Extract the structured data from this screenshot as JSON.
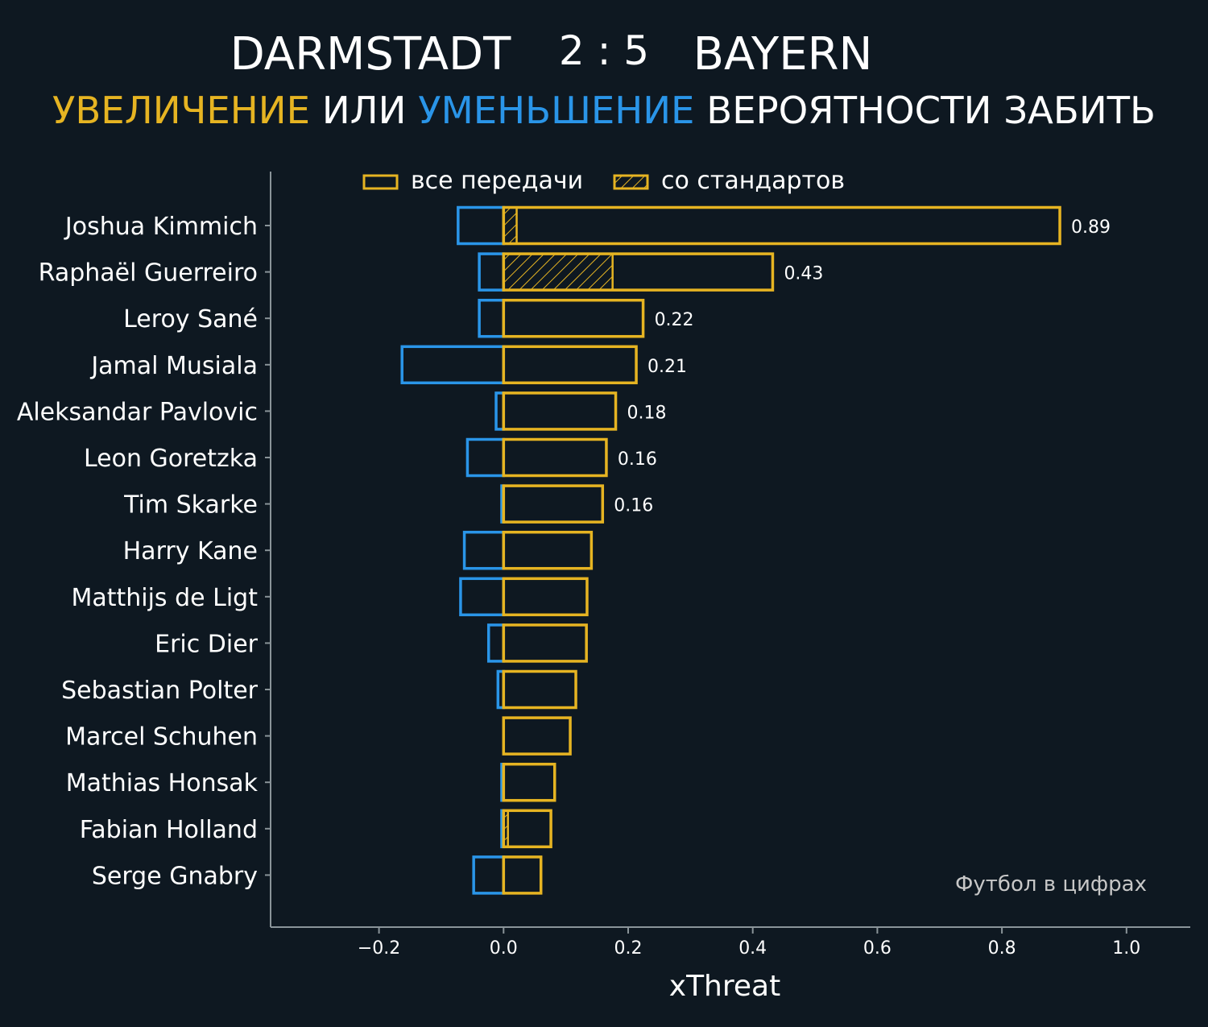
{
  "header": {
    "home_team": "DARMSTADT",
    "score": "2 : 5",
    "away_team": "BAYERN",
    "subtitle_increase": "УВЕЛИЧЕНИЕ",
    "subtitle_or": " ИЛИ ",
    "subtitle_decrease": "УМЕНЬШЕНИЕ",
    "subtitle_rest": " ВЕРОЯТНОСТИ ЗАБИТЬ"
  },
  "colors": {
    "background": "#0e1821",
    "increase": "#e6b422",
    "decrease": "#2a95e8",
    "axis": "#8a9499",
    "text": "#ffffff",
    "watermark": "#c7c7c7"
  },
  "legend": {
    "all_passes": "все передачи",
    "set_pieces": "со стандартов"
  },
  "watermark": "Футбол в цифрах",
  "chart_data": {
    "type": "bar",
    "orientation": "horizontal",
    "xlabel": "xThreat",
    "xlim": [
      -0.37,
      1.1
    ],
    "xticks": [
      -0.2,
      0.0,
      0.2,
      0.4,
      0.6,
      0.8,
      1.0
    ],
    "xtick_labels": [
      "−0.2",
      "0.0",
      "0.2",
      "0.4",
      "0.6",
      "0.8",
      "1.0"
    ],
    "players": [
      {
        "name": "Joshua Kimmich",
        "positive": 0.893,
        "negative": -0.073,
        "set_piece": 0.021,
        "label": "0.89"
      },
      {
        "name": "Raphaël Guerreiro",
        "positive": 0.432,
        "negative": -0.039,
        "set_piece": 0.175,
        "label": "0.43"
      },
      {
        "name": "Leroy Sané",
        "positive": 0.224,
        "negative": -0.039,
        "set_piece": 0,
        "label": "0.22"
      },
      {
        "name": "Jamal Musiala",
        "positive": 0.213,
        "negative": -0.163,
        "set_piece": 0,
        "label": "0.21"
      },
      {
        "name": "Aleksandar Pavlovic",
        "positive": 0.18,
        "negative": -0.012,
        "set_piece": 0,
        "label": "0.18"
      },
      {
        "name": "Leon Goretzka",
        "positive": 0.165,
        "negative": -0.058,
        "set_piece": 0,
        "label": "0.16"
      },
      {
        "name": "Tim Skarke",
        "positive": 0.159,
        "negative": -0.003,
        "set_piece": 0,
        "label": "0.16"
      },
      {
        "name": "Harry Kane",
        "positive": 0.141,
        "negative": -0.063,
        "set_piece": 0,
        "label": ""
      },
      {
        "name": "Matthijs de Ligt",
        "positive": 0.134,
        "negative": -0.069,
        "set_piece": 0,
        "label": ""
      },
      {
        "name": "Eric Dier",
        "positive": 0.133,
        "negative": -0.024,
        "set_piece": 0,
        "label": ""
      },
      {
        "name": "Sebastian Polter",
        "positive": 0.116,
        "negative": -0.009,
        "set_piece": 0,
        "label": ""
      },
      {
        "name": "Marcel Schuhen",
        "positive": 0.107,
        "negative": 0,
        "set_piece": 0,
        "label": ""
      },
      {
        "name": "Mathias Honsak",
        "positive": 0.082,
        "negative": -0.003,
        "set_piece": 0,
        "label": ""
      },
      {
        "name": "Fabian Holland",
        "positive": 0.076,
        "negative": -0.003,
        "set_piece": 0.007,
        "label": ""
      },
      {
        "name": "Serge Gnabry",
        "positive": 0.06,
        "negative": -0.048,
        "set_piece": 0,
        "label": ""
      }
    ]
  }
}
